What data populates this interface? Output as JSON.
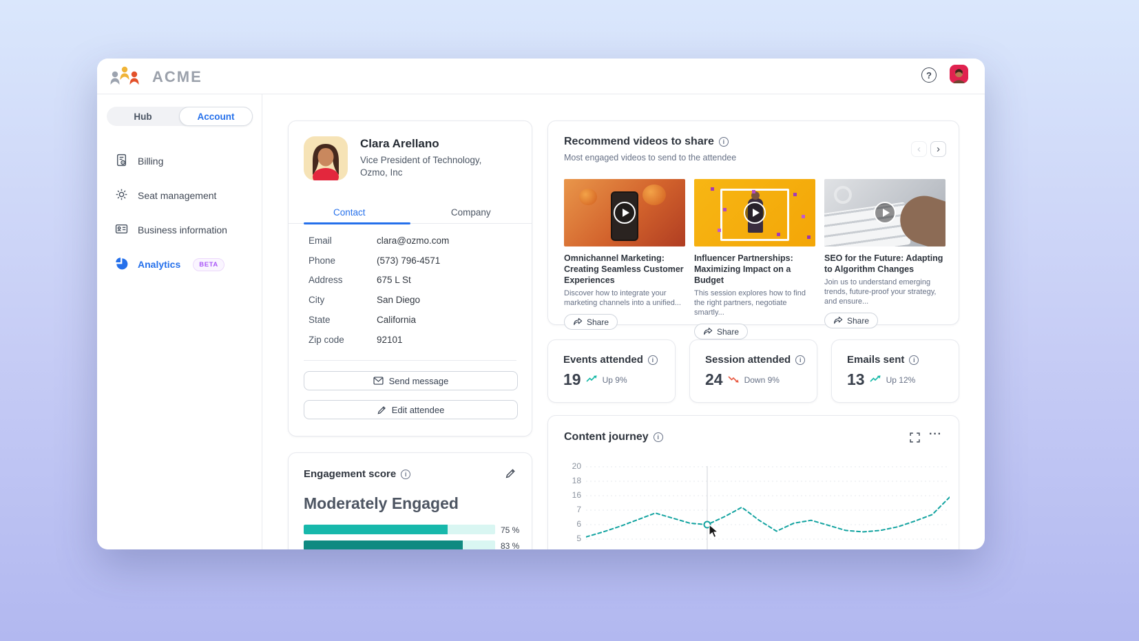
{
  "topbar": {
    "brand": "ACME"
  },
  "icons": {
    "help": "?",
    "info": "i",
    "chevron_left": "‹",
    "chevron_right": "›",
    "ellipsis": "···"
  },
  "sidebar": {
    "segments": [
      {
        "label": "Hub",
        "active": false
      },
      {
        "label": "Account",
        "active": true
      }
    ],
    "items": [
      {
        "label": "Billing",
        "icon": "invoice-icon",
        "active": false,
        "badge": ""
      },
      {
        "label": "Seat management",
        "icon": "gear-icon",
        "active": false,
        "badge": ""
      },
      {
        "label": "Business information",
        "icon": "id-card-icon",
        "active": false,
        "badge": ""
      },
      {
        "label": "Analytics",
        "icon": "pie-chart-icon",
        "active": true,
        "badge": "BETA"
      }
    ]
  },
  "contact_card": {
    "name": "Clara Arellano",
    "subtitle": "Vice President of Technology, Ozmo, Inc",
    "tabs": [
      {
        "label": "Contact",
        "active": true
      },
      {
        "label": "Company",
        "active": false
      }
    ],
    "fields": [
      {
        "label": "Email",
        "value": "clara@ozmo.com"
      },
      {
        "label": "Phone",
        "value": "(573) 796-4571"
      },
      {
        "label": "Address",
        "value": "675 L St"
      },
      {
        "label": "City",
        "value": "San Diego"
      },
      {
        "label": "State",
        "value": "California"
      },
      {
        "label": "Zip code",
        "value": "92101"
      }
    ],
    "buttons": {
      "send": "Send message",
      "edit": "Edit attendee"
    }
  },
  "engagement_card": {
    "title": "Engagement score",
    "status": "Moderately Engaged",
    "bars": [
      {
        "percent": 75,
        "label": "75 %",
        "color": "#17b8ab"
      },
      {
        "percent": 83,
        "label": "83 %",
        "color": "#0f8a81"
      }
    ],
    "track_color": "#d9f6f2"
  },
  "videos_card": {
    "title": "Recommend videos to share",
    "subtitle": "Most engaged videos to send to the attendee",
    "share_label": "Share",
    "items": [
      {
        "title": "Omnichannel Marketing: Creating Seamless Customer Experiences",
        "description": "Discover how to integrate your marketing channels into a unified...",
        "thumbnail_theme": "orange-product-phone"
      },
      {
        "title": "Influencer Partnerships: Maximizing Impact on a Budget",
        "description": "This session explores how to find the right partners, negotiate smartly...",
        "thumbnail_theme": "yellow-influencer-confetti"
      },
      {
        "title": "SEO for the Future: Adapting to Algorithm Changes",
        "description": "Join us to understand emerging trends, future-proof your strategy, and ensure...",
        "thumbnail_theme": "gray-keyboard-hand"
      }
    ]
  },
  "stats": [
    {
      "title": "Events attended",
      "value": "19",
      "trend": "Up 9%",
      "direction": "up"
    },
    {
      "title": "Session attended",
      "value": "24",
      "trend": "Down 9%",
      "direction": "down"
    },
    {
      "title": "Emails sent",
      "value": "13",
      "trend": "Up 12%",
      "direction": "up"
    }
  ],
  "content_journey": {
    "title": "Content journey"
  },
  "chart_data": {
    "type": "line",
    "title": "Content journey",
    "style": "dashed",
    "color": "#12a3a0",
    "grid": true,
    "y_ticks_top_to_bottom": [
      20,
      18,
      16,
      7,
      6,
      5
    ],
    "values_unit": "gridline steps above the 5-baseline (axis ticks are 5,6,7,16,18,20)",
    "values": [
      0.15,
      0.5,
      0.9,
      1.35,
      1.8,
      1.45,
      1.1,
      1.0,
      1.55,
      2.2,
      1.3,
      0.55,
      1.1,
      1.3,
      0.95,
      0.6,
      0.5,
      0.6,
      0.85,
      1.25,
      1.7,
      2.9
    ],
    "highlight_index": 7,
    "highlight_value_on_axis": 6
  },
  "colors": {
    "accent_blue": "#2570eb",
    "accent_teal": "#12a3a0",
    "up_trend": "#14b8a6",
    "down_trend": "#e8573f",
    "beta_purple": "#a855f7"
  }
}
